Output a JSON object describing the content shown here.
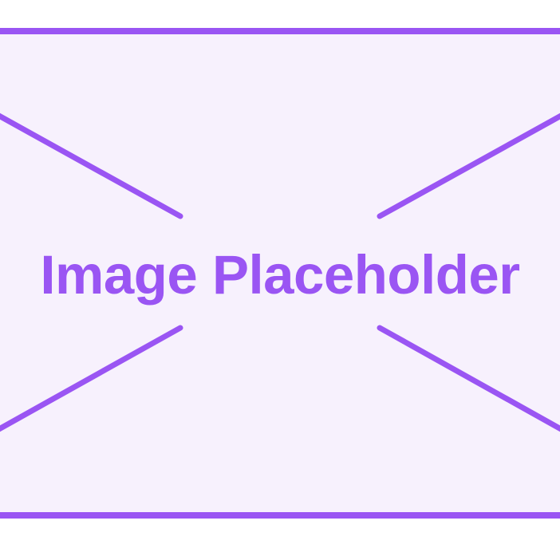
{
  "placeholder": {
    "label": "Image Placeholder",
    "accent_color": "#9a55f3",
    "background_color": "#f7f1fd",
    "icon": "image-placeholder-icon"
  }
}
